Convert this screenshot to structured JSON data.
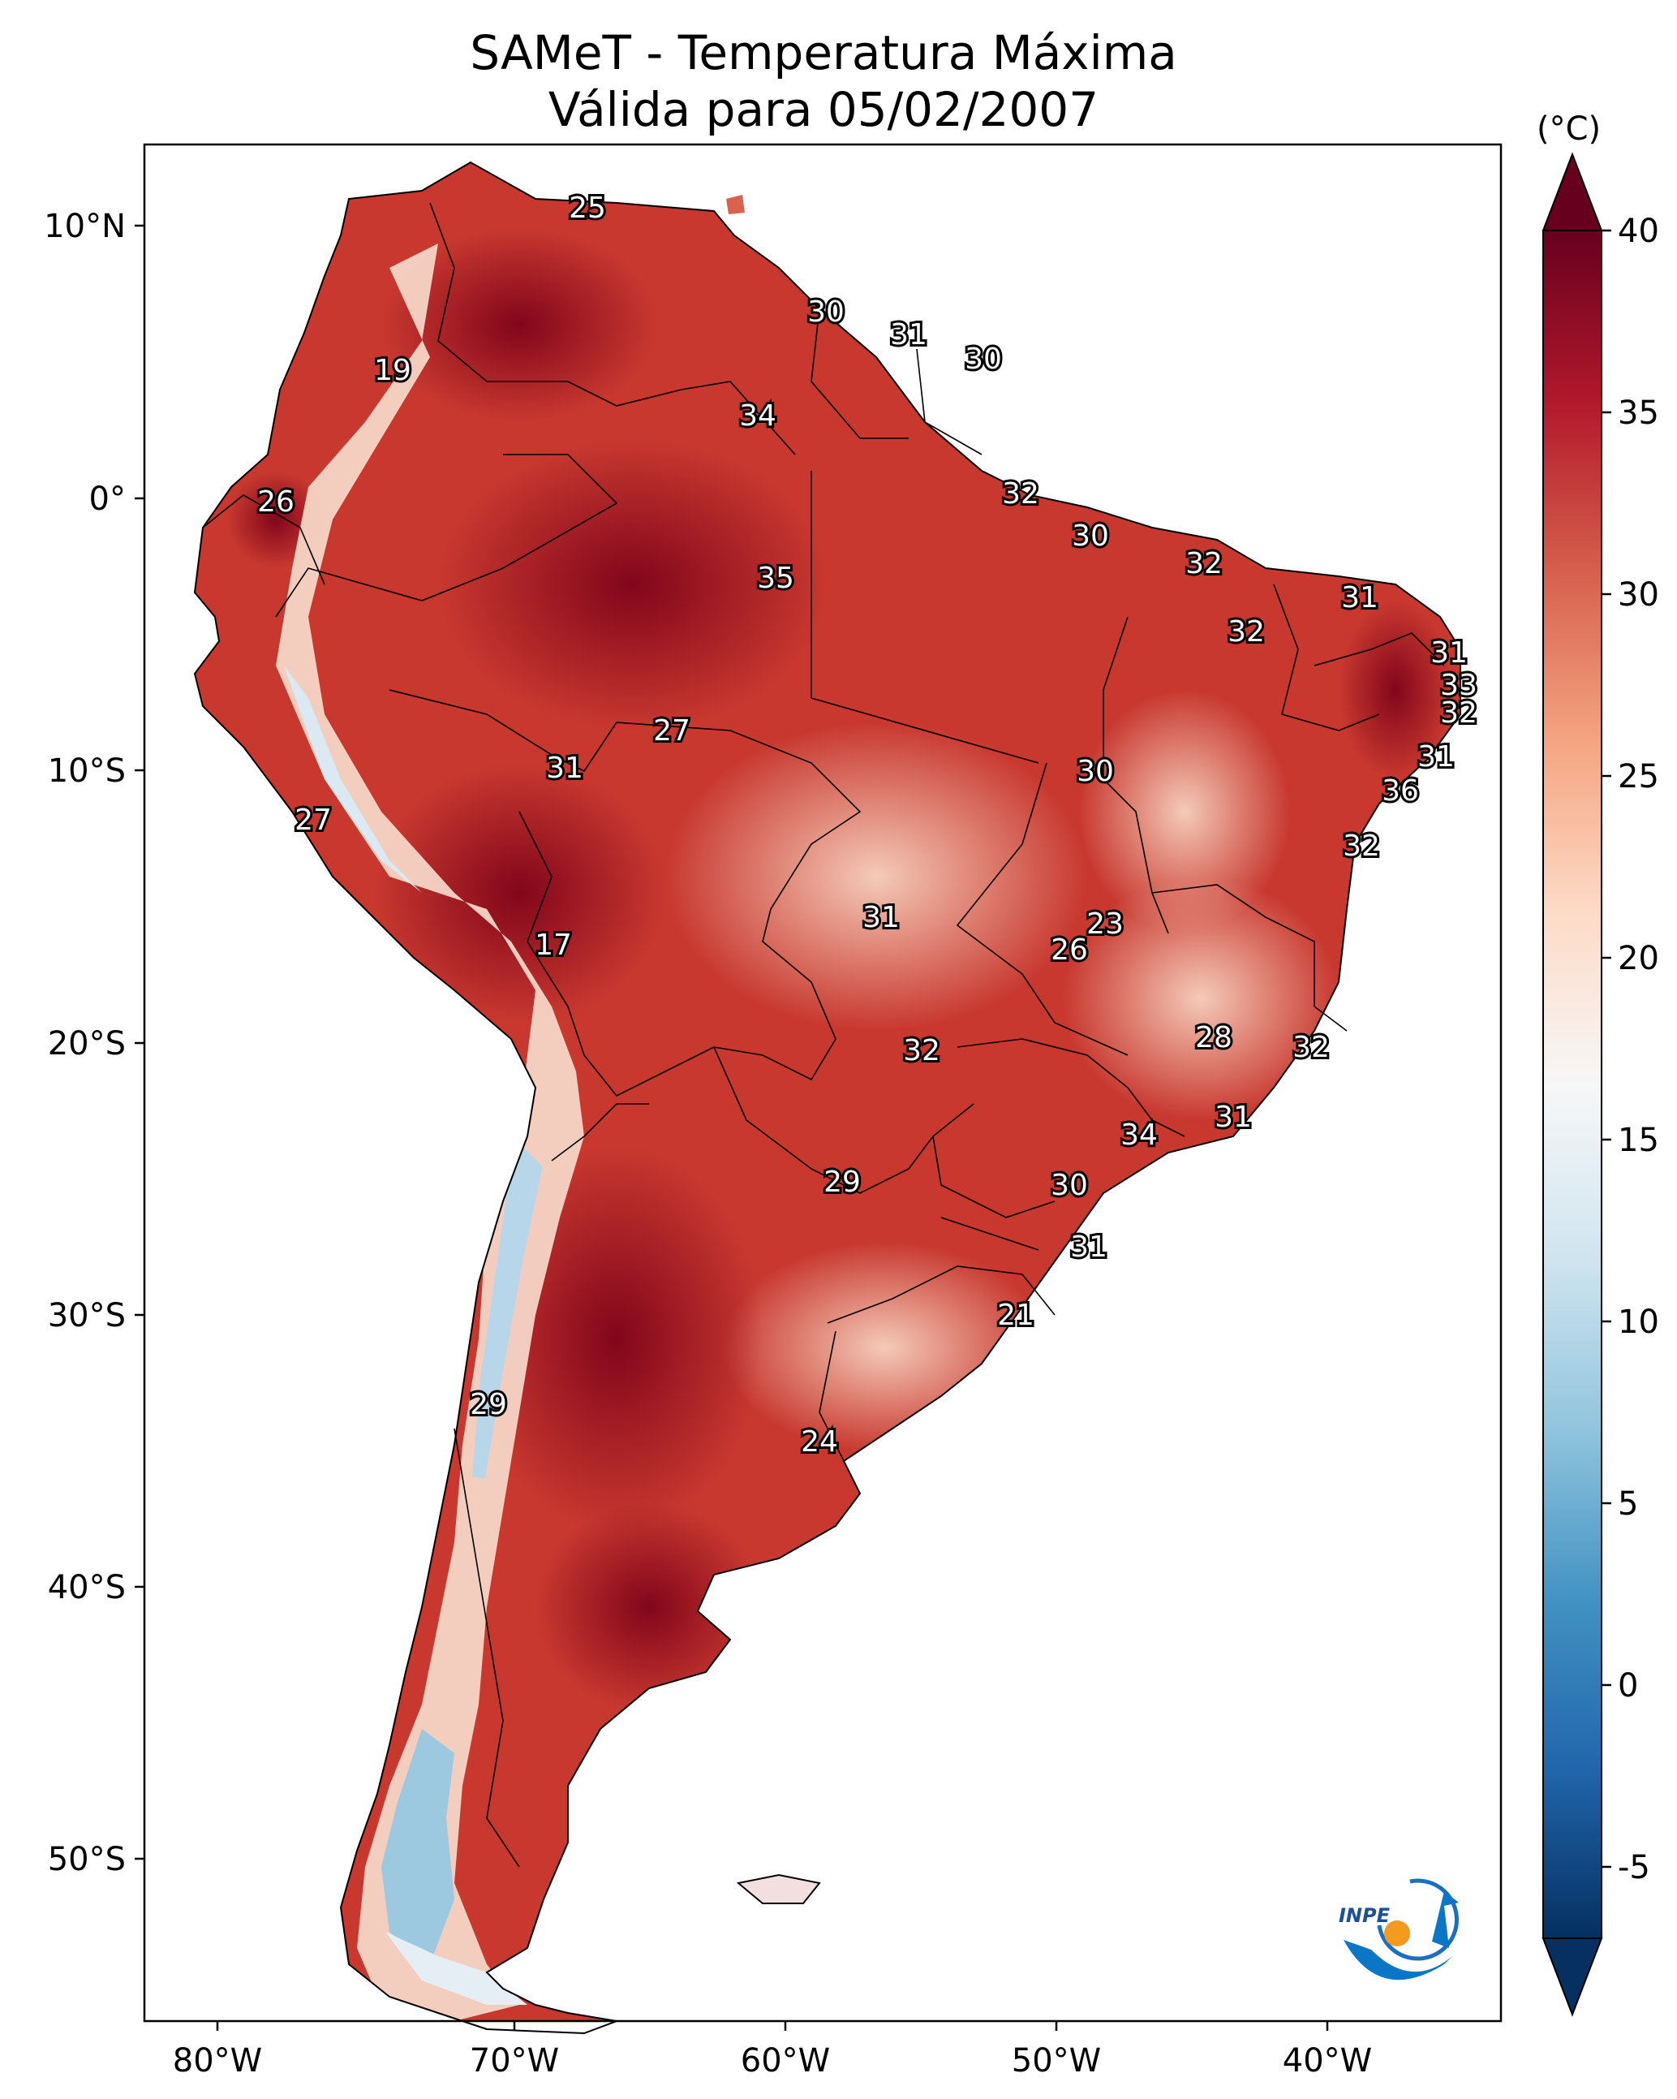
{
  "title": {
    "line1": "SAMeT - Temperatura Máxima",
    "line2": "Válida para 05/02/2007"
  },
  "colorbar": {
    "unit": "(°C)",
    "ticks": [
      "40",
      "35",
      "30",
      "25",
      "20",
      "15",
      "10",
      "5",
      "0",
      "-5"
    ],
    "colors": [
      "#67001f",
      "#b2182b",
      "#d6604d",
      "#f4a582",
      "#fddbc7",
      "#f7f7f7",
      "#d1e5f0",
      "#92c5de",
      "#4393c3",
      "#2166ac",
      "#053061"
    ]
  },
  "axes": {
    "lon_ticks": [
      "80°W",
      "70°W",
      "60°W",
      "50°W",
      "40°W"
    ],
    "lat_ticks": [
      "10°N",
      "0°",
      "10°S",
      "20°S",
      "30°S",
      "40°S",
      "50°S"
    ]
  },
  "labels": [
    "25",
    "19",
    "26",
    "30",
    "31",
    "30",
    "34",
    "32",
    "30",
    "32",
    "35",
    "31",
    "32",
    "31",
    "33",
    "32",
    "27",
    "31",
    "31",
    "30",
    "36",
    "27",
    "32",
    "17",
    "31",
    "23",
    "26",
    "28",
    "32",
    "32",
    "31",
    "34",
    "29",
    "30",
    "31",
    "21",
    "29",
    "24"
  ],
  "logo": {
    "text": "INPE"
  },
  "colors": {
    "land": "#c0392b",
    "hot": "#8e0a1f",
    "cool": "#f6e3d8",
    "cold": "#9cc8e0"
  }
}
